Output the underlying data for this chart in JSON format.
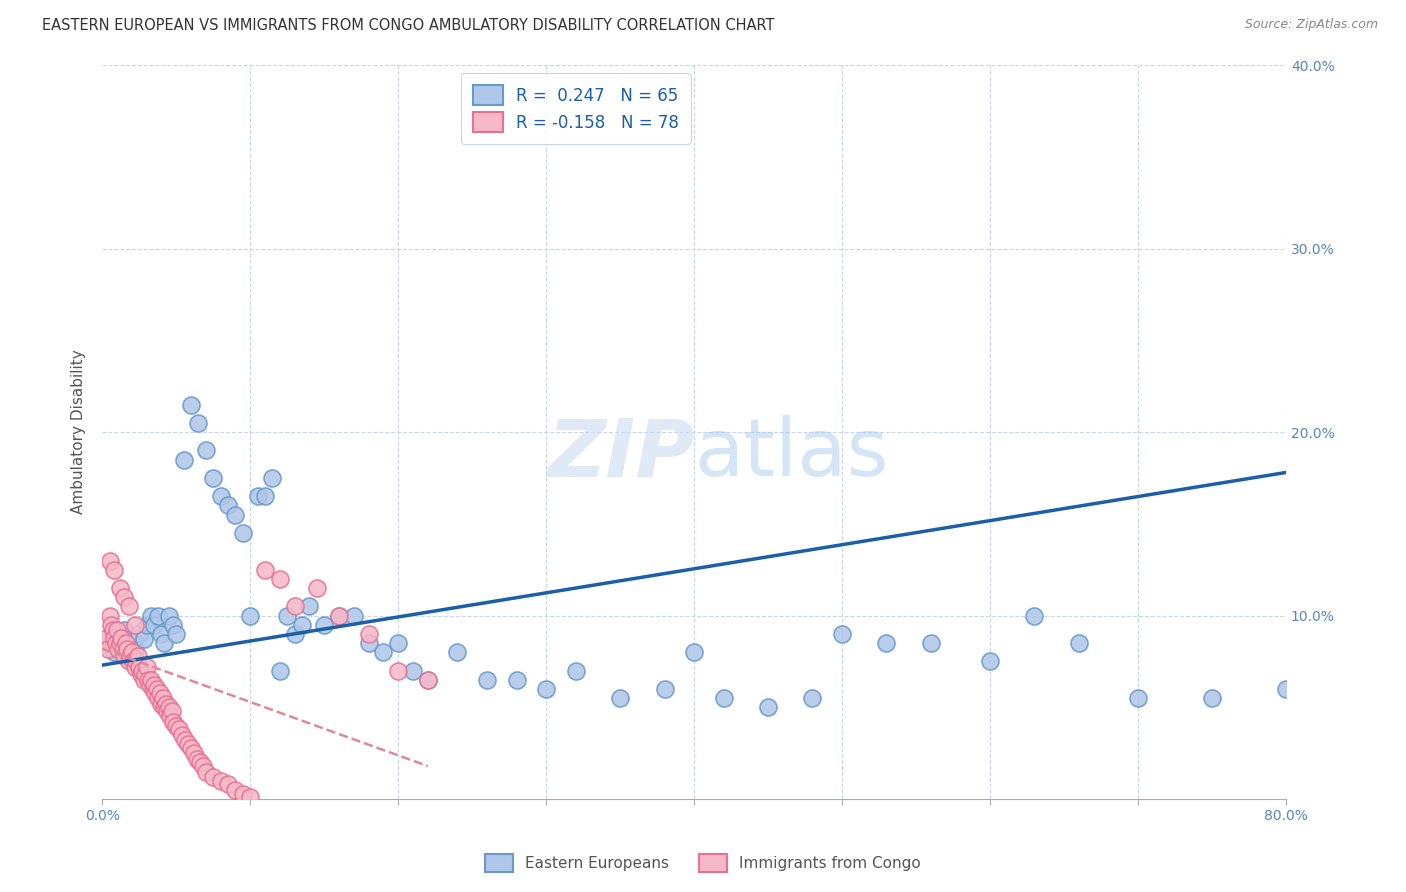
{
  "title": "EASTERN EUROPEAN VS IMMIGRANTS FROM CONGO AMBULATORY DISABILITY CORRELATION CHART",
  "source": "Source: ZipAtlas.com",
  "ylabel": "Ambulatory Disability",
  "xlim": [
    0,
    0.8
  ],
  "ylim": [
    0,
    0.4
  ],
  "xticks": [
    0.0,
    0.1,
    0.2,
    0.3,
    0.4,
    0.5,
    0.6,
    0.7,
    0.8
  ],
  "xtick_labels": [
    "0.0%",
    "",
    "",
    "",
    "",
    "",
    "",
    "",
    "80.0%"
  ],
  "yticks": [
    0.0,
    0.1,
    0.2,
    0.3,
    0.4
  ],
  "ytick_right_labels": [
    "",
    "10.0%",
    "20.0%",
    "30.0%",
    "40.0%"
  ],
  "background_color": "#ffffff",
  "grid_color": "#c8d8e8",
  "blue_dot_face": "#aec6e8",
  "blue_dot_edge": "#6699cc",
  "pink_dot_face": "#f5b8c8",
  "pink_dot_edge": "#e87090",
  "blue_line_color": "#1a5fa8",
  "pink_line_color": "#e08898",
  "axis_label_color": "#5588bb",
  "title_color": "#333333",
  "source_color": "#888888",
  "watermark_color": "#ddeeff",
  "legend_blue_label": "R =  0.247   N = 65",
  "legend_pink_label": "R = -0.158   N = 78",
  "blue_line_x0": 0.0,
  "blue_line_y0": 0.073,
  "blue_line_x1": 0.8,
  "blue_line_y1": 0.178,
  "pink_line_x0": 0.0,
  "pink_line_y0": 0.082,
  "pink_line_x1": 0.22,
  "pink_line_y1": 0.018,
  "blue_x": [
    0.005,
    0.008,
    0.01,
    0.012,
    0.015,
    0.018,
    0.02,
    0.022,
    0.025,
    0.028,
    0.03,
    0.033,
    0.035,
    0.038,
    0.04,
    0.042,
    0.045,
    0.048,
    0.05,
    0.055,
    0.06,
    0.065,
    0.07,
    0.075,
    0.08,
    0.085,
    0.09,
    0.095,
    0.1,
    0.105,
    0.11,
    0.115,
    0.12,
    0.125,
    0.13,
    0.135,
    0.14,
    0.15,
    0.16,
    0.17,
    0.18,
    0.19,
    0.2,
    0.21,
    0.22,
    0.24,
    0.26,
    0.28,
    0.3,
    0.32,
    0.35,
    0.38,
    0.4,
    0.42,
    0.45,
    0.48,
    0.5,
    0.53,
    0.56,
    0.6,
    0.63,
    0.66,
    0.7,
    0.75,
    0.8
  ],
  "blue_y": [
    0.085,
    0.08,
    0.09,
    0.088,
    0.092,
    0.086,
    0.088,
    0.082,
    0.09,
    0.087,
    0.095,
    0.1,
    0.095,
    0.1,
    0.09,
    0.085,
    0.1,
    0.095,
    0.09,
    0.185,
    0.215,
    0.205,
    0.19,
    0.175,
    0.165,
    0.16,
    0.155,
    0.145,
    0.1,
    0.165,
    0.165,
    0.175,
    0.07,
    0.1,
    0.09,
    0.095,
    0.105,
    0.095,
    0.1,
    0.1,
    0.085,
    0.08,
    0.085,
    0.07,
    0.065,
    0.08,
    0.065,
    0.065,
    0.06,
    0.07,
    0.055,
    0.06,
    0.08,
    0.055,
    0.05,
    0.055,
    0.09,
    0.085,
    0.085,
    0.075,
    0.1,
    0.085,
    0.055,
    0.055,
    0.06
  ],
  "pink_x": [
    0.002,
    0.003,
    0.004,
    0.005,
    0.006,
    0.007,
    0.008,
    0.009,
    0.01,
    0.011,
    0.012,
    0.013,
    0.014,
    0.015,
    0.016,
    0.017,
    0.018,
    0.019,
    0.02,
    0.021,
    0.022,
    0.023,
    0.024,
    0.025,
    0.026,
    0.027,
    0.028,
    0.029,
    0.03,
    0.031,
    0.032,
    0.033,
    0.034,
    0.035,
    0.036,
    0.037,
    0.038,
    0.039,
    0.04,
    0.041,
    0.042,
    0.043,
    0.044,
    0.045,
    0.046,
    0.047,
    0.048,
    0.05,
    0.052,
    0.054,
    0.056,
    0.058,
    0.06,
    0.062,
    0.064,
    0.066,
    0.068,
    0.07,
    0.075,
    0.08,
    0.085,
    0.09,
    0.095,
    0.1,
    0.11,
    0.12,
    0.13,
    0.145,
    0.16,
    0.18,
    0.2,
    0.22,
    0.005,
    0.008,
    0.012,
    0.015,
    0.018,
    0.022
  ],
  "pink_y": [
    0.085,
    0.088,
    0.082,
    0.1,
    0.095,
    0.092,
    0.088,
    0.085,
    0.092,
    0.082,
    0.085,
    0.088,
    0.082,
    0.078,
    0.085,
    0.082,
    0.075,
    0.078,
    0.08,
    0.075,
    0.072,
    0.075,
    0.078,
    0.072,
    0.068,
    0.07,
    0.065,
    0.068,
    0.072,
    0.065,
    0.062,
    0.065,
    0.06,
    0.062,
    0.058,
    0.06,
    0.055,
    0.058,
    0.052,
    0.055,
    0.05,
    0.052,
    0.048,
    0.05,
    0.045,
    0.048,
    0.042,
    0.04,
    0.038,
    0.035,
    0.032,
    0.03,
    0.028,
    0.025,
    0.022,
    0.02,
    0.018,
    0.015,
    0.012,
    0.01,
    0.008,
    0.005,
    0.003,
    0.001,
    0.125,
    0.12,
    0.105,
    0.115,
    0.1,
    0.09,
    0.07,
    0.065,
    0.13,
    0.125,
    0.115,
    0.11,
    0.105,
    0.095
  ]
}
